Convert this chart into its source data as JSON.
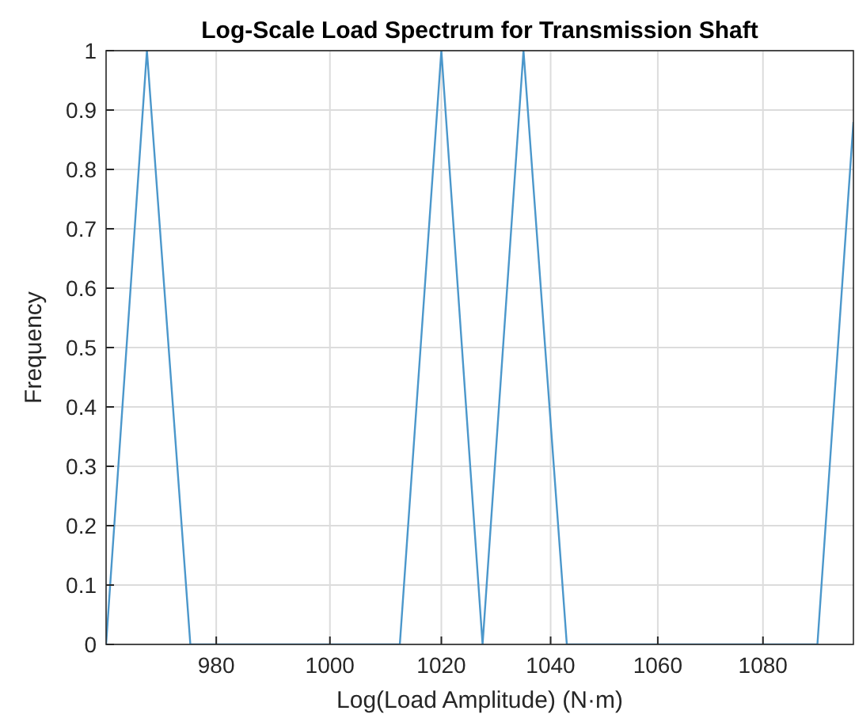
{
  "chart_data": {
    "type": "line",
    "title": "Log-Scale Load Spectrum for Transmission Shaft",
    "xlabel": "Log(Load Amplitude) (N·m)",
    "ylabel": "Frequency",
    "x": [
      961,
      968,
      975.5,
      1012.5,
      1020,
      1027.5,
      1035,
      1043,
      1090.5,
      1097.5
    ],
    "series": [
      {
        "color": "#4b97cb",
        "values": [
          0,
          1,
          0,
          0,
          1,
          0,
          1,
          0,
          0,
          0.88
        ]
      }
    ],
    "xlim": [
      961,
      1097.5
    ],
    "xticks": [
      980,
      1000,
      1020,
      1040,
      1060,
      1080
    ],
    "ylim": [
      0,
      1
    ],
    "yticks": [
      0,
      {
        "value": 0.1,
        "label": "0.1"
      },
      {
        "value": 0.2,
        "label": "0.2"
      },
      {
        "value": 0.3,
        "label": "0.3"
      },
      {
        "value": 0.4,
        "label": "0.4"
      },
      {
        "value": 0.5,
        "label": "0.5"
      },
      {
        "value": 0.6,
        "label": "0.6"
      },
      {
        "value": 0.7,
        "label": "0.7"
      },
      {
        "value": 0.8,
        "label": "0.8"
      },
      {
        "value": 0.9,
        "label": "0.9"
      },
      1
    ],
    "log": "x",
    "grid": true,
    "marker": "none",
    "line_style": "solid"
  }
}
